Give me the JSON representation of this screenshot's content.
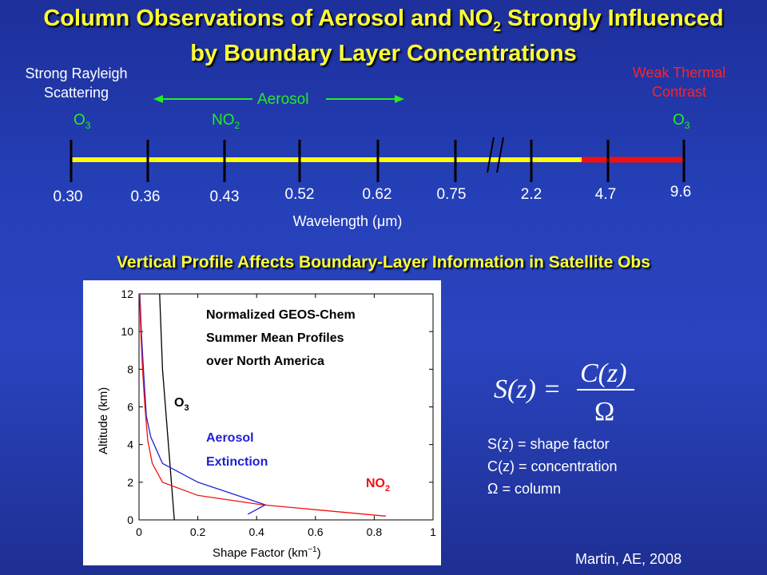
{
  "title_line1_pre": "Column Observations of Aerosol and NO",
  "title_line1_sub": "2",
  "title_line1_post": " Strongly Influenced",
  "title_line2": "by Boundary Layer Concentrations",
  "left_note": [
    "Strong Rayleigh",
    "Scattering"
  ],
  "right_note": [
    "Weak Thermal",
    "Contrast"
  ],
  "aerosol_label": "Aerosol",
  "o3_left": {
    "base": "O",
    "sub": "3"
  },
  "no2_top": {
    "base": "NO",
    "sub": "2"
  },
  "o3_right": {
    "base": "O",
    "sub": "3"
  },
  "wavelengths": [
    "0.30",
    "0.36",
    "0.43",
    "0.52",
    "0.62",
    "0.75",
    "2.2",
    "4.7",
    "9.6"
  ],
  "axis_label": "Wavelength (μm)",
  "colors": {
    "bar_yellow": "#ffff00",
    "bar_red": "#ee1111",
    "accent_yellow": "#ffff33",
    "aerosol_green": "#22ee22"
  },
  "subtitle": "Vertical Profile Affects Boundary-Layer Information in Satellite Obs",
  "chart_data": {
    "type": "line",
    "title": "",
    "annotation": [
      "Normalized GEOS-Chem",
      "Summer Mean Profiles",
      "over North America"
    ],
    "xlabel": "Shape Factor (km",
    "xlabel_sup": "−1",
    "xlabel_end": ")",
    "ylabel": "Altitude (km)",
    "xlim": [
      0,
      1
    ],
    "ylim": [
      0,
      12
    ],
    "xticks": [
      "0",
      "0.2",
      "0.4",
      "0.6",
      "0.8",
      "1"
    ],
    "yticks": [
      "0",
      "2",
      "4",
      "6",
      "8",
      "10",
      "12"
    ],
    "series": [
      {
        "name": "O3",
        "label_base": "O",
        "label_sub": "3",
        "color": "#000000",
        "points": [
          [
            0.12,
            0
          ],
          [
            0.11,
            2
          ],
          [
            0.1,
            4
          ],
          [
            0.09,
            6
          ],
          [
            0.08,
            8
          ],
          [
            0.075,
            10
          ],
          [
            0.07,
            12
          ]
        ]
      },
      {
        "name": "Aerosol Extinction",
        "label": [
          "Aerosol",
          "Extinction"
        ],
        "color": "#1f1fd6",
        "points": [
          [
            0.37,
            0.3
          ],
          [
            0.43,
            0.8
          ],
          [
            0.2,
            2
          ],
          [
            0.08,
            3
          ],
          [
            0.04,
            4.4
          ],
          [
            0.025,
            5.5
          ],
          [
            0.015,
            8
          ],
          [
            0.008,
            10
          ],
          [
            0.003,
            12
          ]
        ]
      },
      {
        "name": "NO2",
        "label_base": "NO",
        "label_sub": "2",
        "color": "#ee1111",
        "points": [
          [
            0.84,
            0.2
          ],
          [
            0.42,
            0.8
          ],
          [
            0.2,
            1.3
          ],
          [
            0.08,
            2
          ],
          [
            0.045,
            3
          ],
          [
            0.03,
            4.2
          ],
          [
            0.02,
            6
          ],
          [
            0.012,
            8
          ],
          [
            0.006,
            10
          ],
          [
            0.002,
            12
          ]
        ]
      }
    ]
  },
  "formula": {
    "lhs": "S(z) =",
    "num": "C(z)",
    "den": "Ω"
  },
  "definitions": [
    "S(z) = shape factor",
    "C(z) = concentration",
    "Ω = column"
  ],
  "citation": "Martin, AE, 2008"
}
